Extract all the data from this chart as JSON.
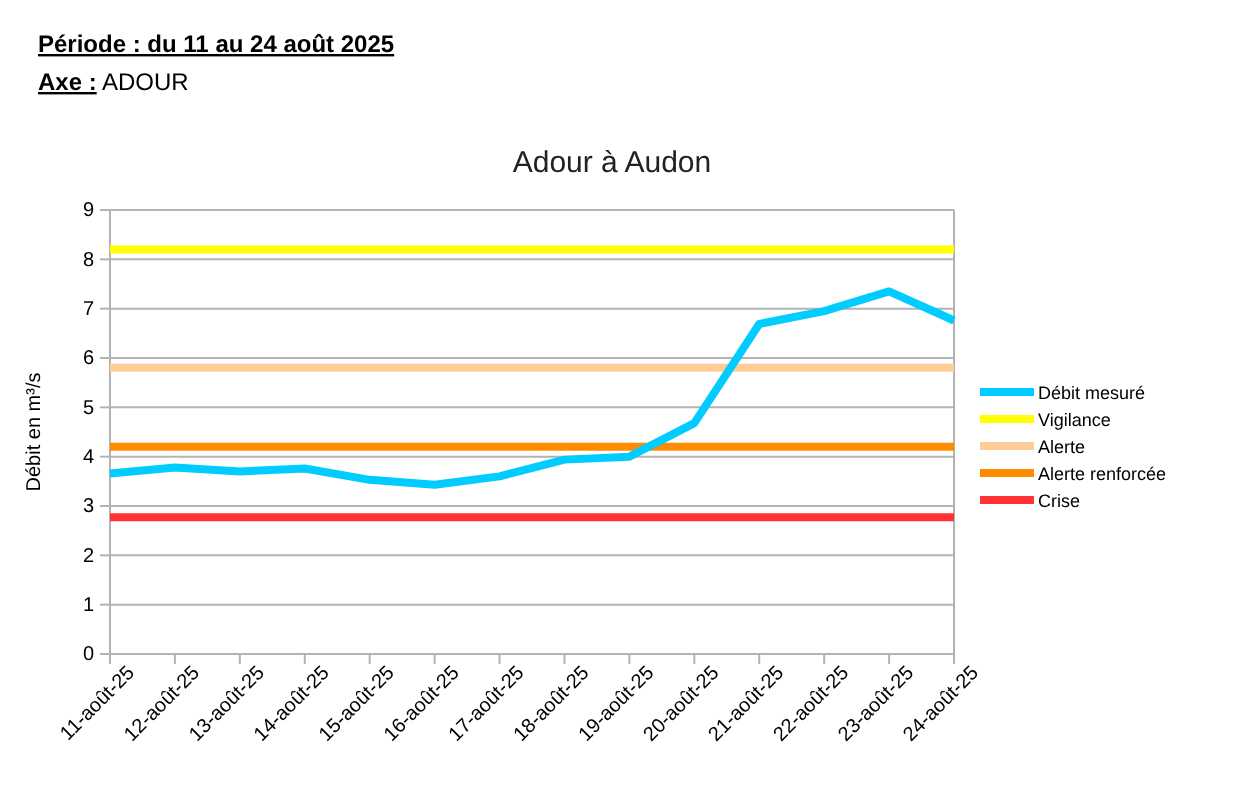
{
  "chart_data": {
    "type": "line",
    "title": "Adour à Audon",
    "ylabel": "Débit en m³/s",
    "annotations": [
      "Période : du 11 au 24 août 2025",
      "Axe : ADOUR"
    ],
    "categories": [
      "11-août-25",
      "12-août-25",
      "13-août-25",
      "14-août-25",
      "15-août-25",
      "16-août-25",
      "17-août-25",
      "18-août-25",
      "19-août-25",
      "20-août-25",
      "21-août-25",
      "22-août-25",
      "23-août-25",
      "24-août-25"
    ],
    "series": [
      {
        "name": "Débit mesuré",
        "color": "#00ccff",
        "values": [
          3.66,
          3.78,
          3.7,
          3.76,
          3.53,
          3.43,
          3.6,
          3.94,
          4.0,
          4.68,
          6.69,
          6.95,
          7.35,
          6.76
        ]
      },
      {
        "name": "Vigilance",
        "color": "#ffff00",
        "values": [
          8.2,
          8.2,
          8.2,
          8.2,
          8.2,
          8.2,
          8.2,
          8.2,
          8.2,
          8.2,
          8.2,
          8.2,
          8.2,
          8.2
        ]
      },
      {
        "name": "Alerte",
        "color": "#ffcc99",
        "values": [
          5.8,
          5.8,
          5.8,
          5.8,
          5.8,
          5.8,
          5.8,
          5.8,
          5.8,
          5.8,
          5.8,
          5.8,
          5.8,
          5.8
        ]
      },
      {
        "name": "Alerte renforcée",
        "color": "#ff8c00",
        "values": [
          4.2,
          4.2,
          4.2,
          4.2,
          4.2,
          4.2,
          4.2,
          4.2,
          4.2,
          4.2,
          4.2,
          4.2,
          4.2,
          4.2
        ]
      },
      {
        "name": "Crise",
        "color": "#ff3333",
        "values": [
          2.77,
          2.77,
          2.77,
          2.77,
          2.77,
          2.77,
          2.77,
          2.77,
          2.77,
          2.77,
          2.77,
          2.77,
          2.77,
          2.77
        ]
      }
    ],
    "ylim": [
      0,
      9
    ],
    "yticks": [
      0,
      1,
      2,
      3,
      4,
      5,
      6,
      7,
      8,
      9
    ],
    "grid": "y",
    "legend": "right",
    "marker": "none",
    "line_style": "solid"
  }
}
